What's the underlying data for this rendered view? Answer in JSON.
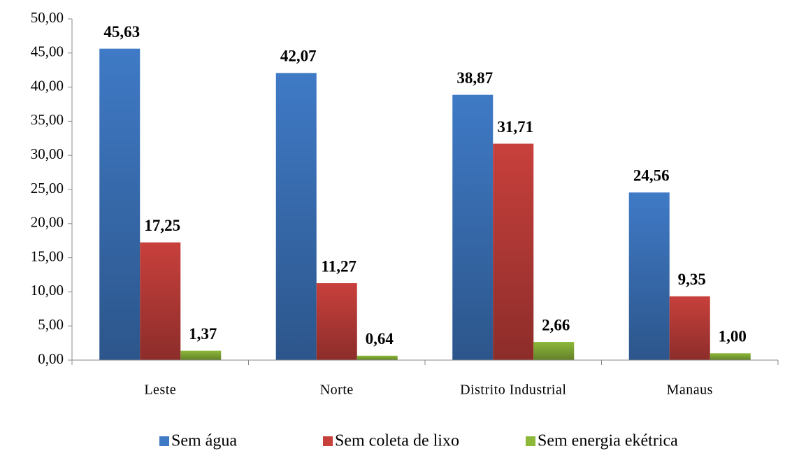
{
  "chart_data": {
    "type": "bar",
    "categories": [
      "Leste",
      "Norte",
      "Distrito Industrial",
      "Manaus"
    ],
    "series": [
      {
        "name": "Sem água",
        "color": "#3f7ac6",
        "values": [
          45.63,
          42.07,
          38.87,
          24.56
        ],
        "value_labels": [
          "45,63",
          "42,07",
          "38,87",
          "24,56"
        ]
      },
      {
        "name": "Sem coleta de lixo",
        "color": "#c8403c",
        "values": [
          17.25,
          11.27,
          31.71,
          9.35
        ],
        "value_labels": [
          "17,25",
          "11,27",
          "31,71",
          "9,35"
        ]
      },
      {
        "name": "Sem energia ekétrica",
        "color": "#8db83a",
        "values": [
          1.37,
          0.64,
          2.66,
          1.0
        ],
        "value_labels": [
          "1,37",
          "0,64",
          "2,66",
          "1,00"
        ]
      }
    ],
    "ylim": [
      0,
      50
    ],
    "yticks": [
      {
        "value": 0,
        "label": "0,00"
      },
      {
        "value": 5,
        "label": "5,00"
      },
      {
        "value": 10,
        "label": "10,00"
      },
      {
        "value": 15,
        "label": "15,00"
      },
      {
        "value": 20,
        "label": "20,00"
      },
      {
        "value": 25,
        "label": "25,00"
      },
      {
        "value": 30,
        "label": "30,00"
      },
      {
        "value": 35,
        "label": "35,00"
      },
      {
        "value": 40,
        "label": "40,00"
      },
      {
        "value": 45,
        "label": "45,00"
      },
      {
        "value": 50,
        "label": "50,00"
      }
    ],
    "legend": "bottom"
  }
}
